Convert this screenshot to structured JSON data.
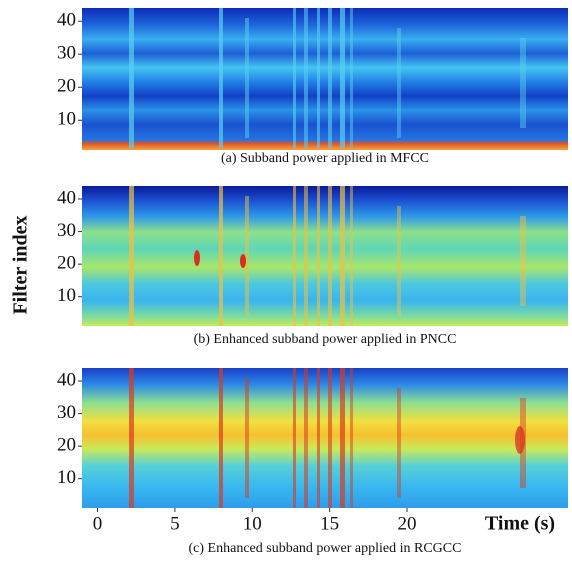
{
  "ylabel": "Filter index",
  "chart_data": [
    {
      "type": "heatmap",
      "caption": "(a) Subband power applied in MFCC",
      "ylim": [
        1,
        44
      ],
      "yticks": [
        10,
        20,
        30,
        40
      ]
    },
    {
      "type": "heatmap",
      "caption": "(b) Enhanced  subband power applied in PNCC",
      "ylim": [
        1,
        44
      ],
      "yticks": [
        10,
        20,
        30,
        40
      ]
    },
    {
      "type": "heatmap",
      "caption": "(c) Enhanced  subband power applied in RCGCC",
      "ylim": [
        1,
        44
      ],
      "yticks": [
        10,
        20,
        30,
        40
      ],
      "xlabel": "Time (s)",
      "xlim": [
        -1,
        30.4
      ],
      "xticks": [
        0,
        5,
        10,
        15,
        20
      ]
    }
  ]
}
